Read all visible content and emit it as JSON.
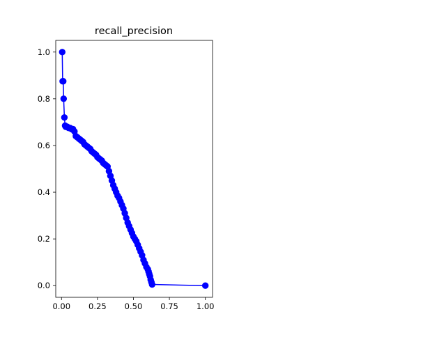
{
  "chart_data": {
    "type": "line",
    "title": "recall_precision",
    "xlabel": "",
    "ylabel": "",
    "xlim": [
      -0.04,
      1.05
    ],
    "ylim": [
      -0.05,
      1.05
    ],
    "xticks": [
      0.0,
      0.25,
      0.5,
      0.75,
      1.0
    ],
    "xtick_labels": [
      "0.00",
      "0.25",
      "0.50",
      "0.75",
      "1.00"
    ],
    "yticks": [
      0.0,
      0.2,
      0.4,
      0.6,
      0.8,
      1.0
    ],
    "ytick_labels": [
      "0.0",
      "0.2",
      "0.4",
      "0.6",
      "0.8",
      "1.0"
    ],
    "grid": false,
    "legend": "none",
    "marker": "circle",
    "color": "#0000ff",
    "series": [
      {
        "x": [
          0.005,
          0.008,
          0.012,
          0.015,
          0.02,
          0.025,
          0.03,
          0.04,
          0.05,
          0.06,
          0.07,
          0.08,
          0.09,
          0.1,
          0.11,
          0.12,
          0.13,
          0.14,
          0.15,
          0.16,
          0.17,
          0.18,
          0.19,
          0.2,
          0.21,
          0.22,
          0.23,
          0.24,
          0.25,
          0.26,
          0.27,
          0.28,
          0.29,
          0.3,
          0.31,
          0.32,
          0.33,
          0.34,
          0.35,
          0.36,
          0.37,
          0.38,
          0.39,
          0.4,
          0.41,
          0.42,
          0.43,
          0.44,
          0.45,
          0.46,
          0.47,
          0.48,
          0.49,
          0.5,
          0.51,
          0.52,
          0.53,
          0.54,
          0.55,
          0.56,
          0.57,
          0.58,
          0.59,
          0.6,
          0.605,
          0.61,
          0.615,
          0.62,
          0.625,
          0.63,
          1.0
        ],
        "y": [
          1.0,
          0.875,
          0.875,
          0.8,
          0.72,
          0.685,
          0.68,
          0.68,
          0.675,
          0.675,
          0.67,
          0.67,
          0.66,
          0.64,
          0.635,
          0.63,
          0.625,
          0.62,
          0.615,
          0.605,
          0.6,
          0.595,
          0.59,
          0.585,
          0.575,
          0.57,
          0.565,
          0.56,
          0.55,
          0.545,
          0.54,
          0.535,
          0.525,
          0.52,
          0.515,
          0.51,
          0.49,
          0.47,
          0.45,
          0.43,
          0.415,
          0.4,
          0.385,
          0.375,
          0.36,
          0.345,
          0.33,
          0.31,
          0.29,
          0.27,
          0.255,
          0.24,
          0.225,
          0.21,
          0.2,
          0.19,
          0.175,
          0.16,
          0.145,
          0.13,
          0.11,
          0.095,
          0.08,
          0.07,
          0.06,
          0.05,
          0.04,
          0.025,
          0.015,
          0.005,
          0.0
        ]
      }
    ]
  }
}
